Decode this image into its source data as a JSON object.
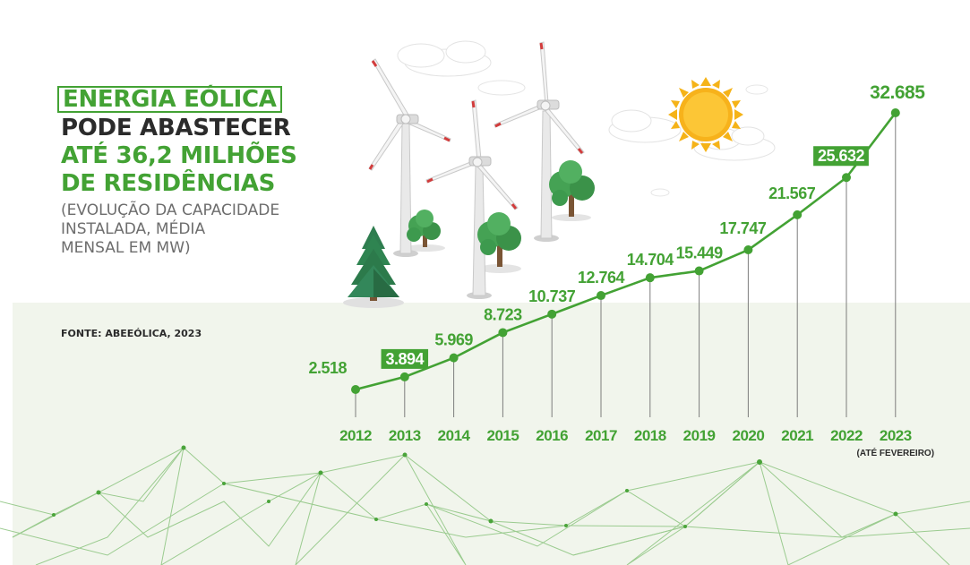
{
  "title": {
    "line1": "ENERGIA EÓLICA",
    "line2": "PODE ABASTECER",
    "line3": "ATÉ 36,2 MILHÕES",
    "line4": "DE RESIDÊNCIAS"
  },
  "subtitle": {
    "line1": "(EVOLUÇÃO DA CAPACIDADE",
    "line2": "INSTALADA, MÉDIA",
    "line3": "MENSAL EM MW)"
  },
  "source": "FONTE: ABEEÓLICA, 2023",
  "colors": {
    "accent": "#43a234",
    "text_dark": "#2b2b2b",
    "text_gray": "#6d6d6d",
    "band": "#f1f5ec"
  },
  "chart_data": {
    "type": "line",
    "categories": [
      "2012",
      "2013",
      "2014",
      "2015",
      "2016",
      "2017",
      "2018",
      "2019",
      "2020",
      "2021",
      "2022",
      "2023"
    ],
    "values": [
      2518,
      3894,
      5969,
      8723,
      10737,
      12764,
      14704,
      15449,
      17747,
      21567,
      25632,
      32685
    ],
    "value_labels": [
      "2.518",
      "3.894",
      "5.969",
      "8.723",
      "10.737",
      "12.764",
      "14.704",
      "15.449",
      "17.747",
      "21.567",
      "25.632",
      "32.685"
    ],
    "highlighted": [
      "2013",
      "2022"
    ],
    "category_note": "(ATÉ FEVEREIRO)",
    "title": "",
    "xlabel": "",
    "ylabel": "",
    "grid": false,
    "legend": "none",
    "line_color": "#43a234"
  }
}
